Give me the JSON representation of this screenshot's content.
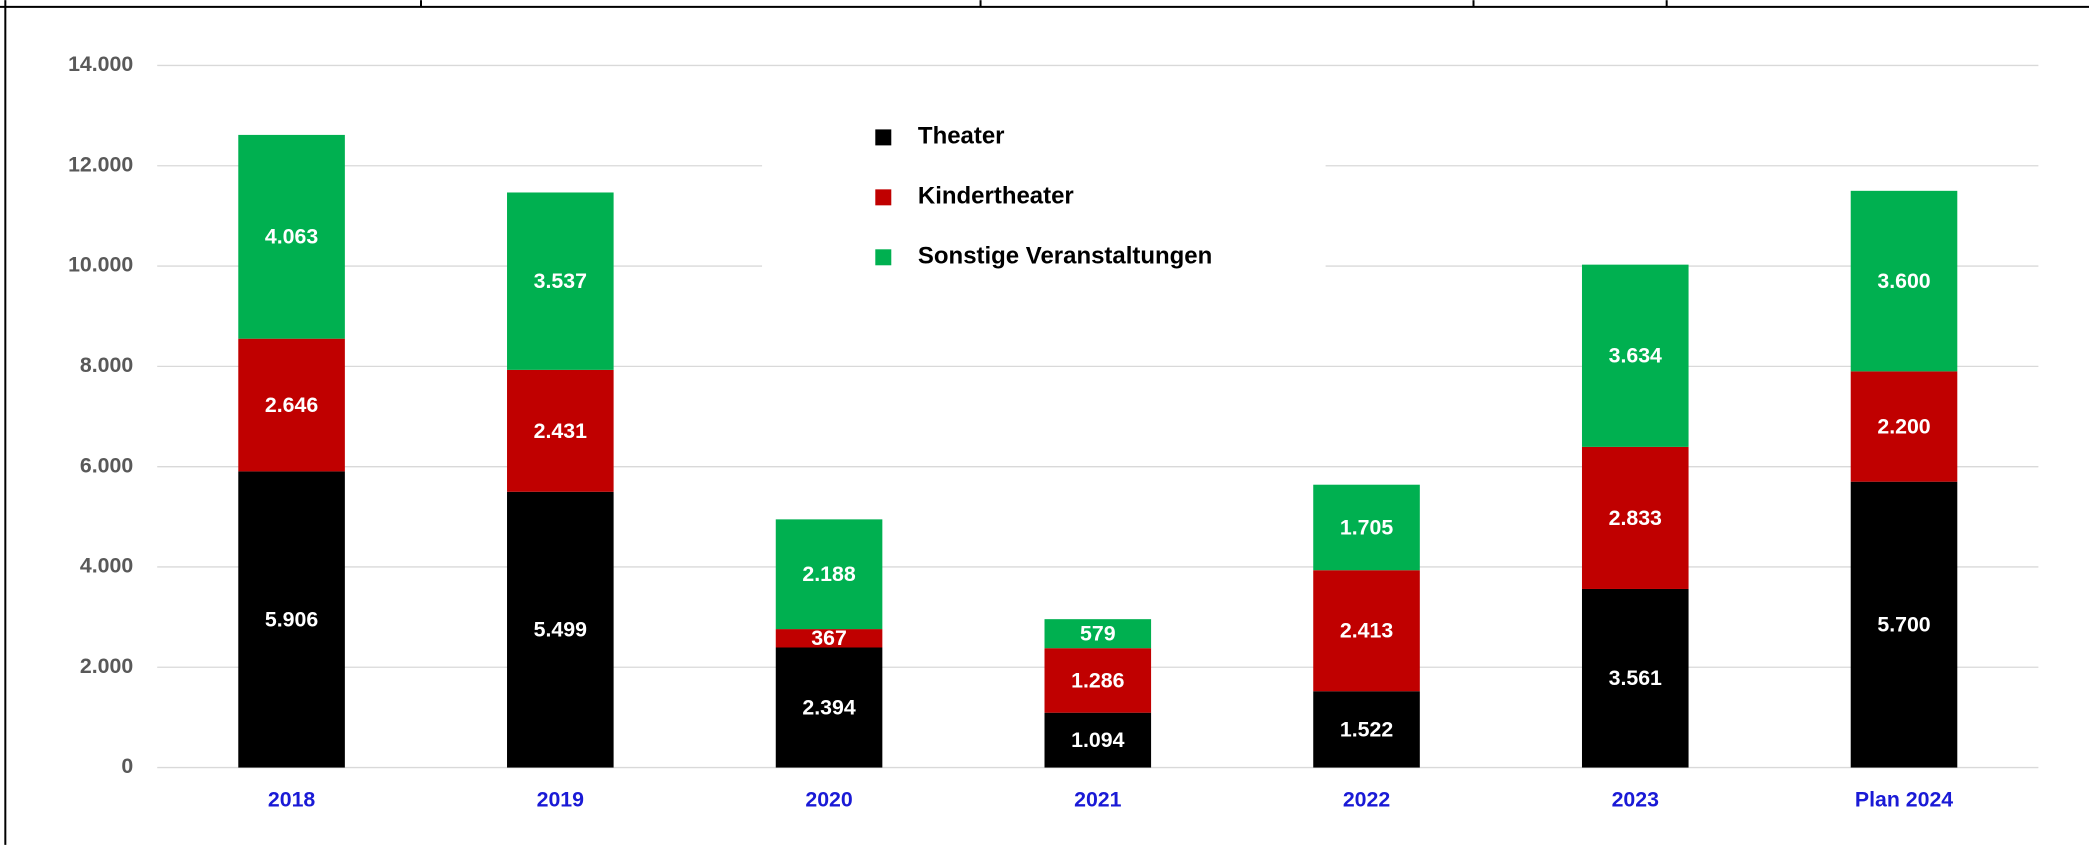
{
  "chart_data": {
    "type": "stacked_bar",
    "categories": [
      "2018",
      "2019",
      "2020",
      "2021",
      "2022",
      "2023",
      "Plan 2024"
    ],
    "series": [
      {
        "name": "Theater",
        "color": "#000000",
        "values": [
          5906,
          5499,
          2394,
          1094,
          1522,
          3561,
          5700
        ],
        "value_labels": [
          "5.906",
          "5.499",
          "2.394",
          "1.094",
          "1.522",
          "3.561",
          "5.700"
        ]
      },
      {
        "name": "Kindertheater",
        "color": "#c00000",
        "values": [
          2646,
          2431,
          367,
          1286,
          2413,
          2833,
          2200
        ],
        "value_labels": [
          "2.646",
          "2.431",
          "367",
          "1.286",
          "2.413",
          "2.833",
          "2.200"
        ]
      },
      {
        "name": "Sonstige Veranstaltungen",
        "color": "#00b050",
        "values": [
          4063,
          3537,
          2188,
          579,
          1705,
          3634,
          3600
        ],
        "value_labels": [
          "4.063",
          "3.537",
          "2.188",
          "579",
          "1.705",
          "3.634",
          "3.600"
        ]
      }
    ],
    "ylim": [
      0,
      14000
    ],
    "yticks": [
      0,
      {
        "value": 2000,
        "label": "2.000"
      },
      {
        "value": 4000,
        "label": "4.000"
      },
      {
        "value": 6000,
        "label": "6.000"
      },
      {
        "value": 8000,
        "label": "8.000"
      },
      {
        "value": 10000,
        "label": "10.000"
      },
      {
        "value": 12000,
        "label": "12.000"
      },
      {
        "value": 14000,
        "label": "14.000"
      }
    ],
    "grid": true,
    "legend": "top"
  }
}
